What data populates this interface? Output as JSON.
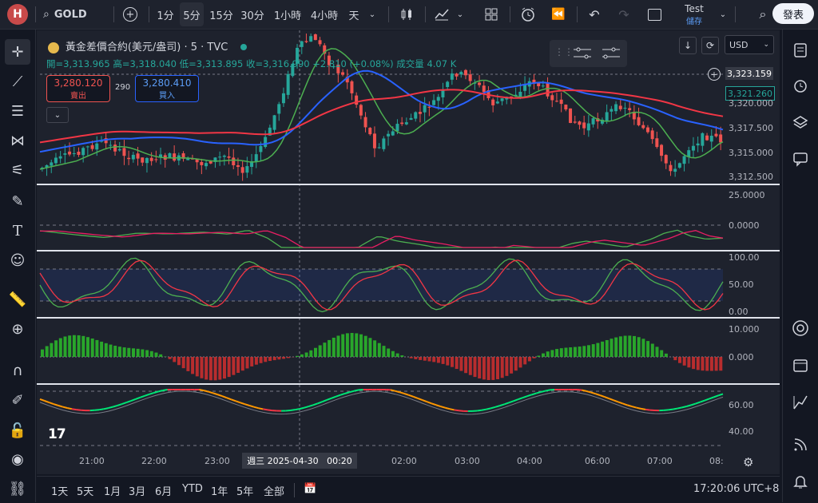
{
  "topbar": {
    "avatar_letter": "H",
    "symbol": "GOLD",
    "intervals": [
      "1分",
      "5分",
      "15分",
      "30分",
      "1小時",
      "4小時",
      "天"
    ],
    "active_interval": "5分",
    "user_name": "Test",
    "save_label": "儲存",
    "publish_label": "發表"
  },
  "legend": {
    "title": "黃金差價合約(美元/盎司) · 5 · TVC",
    "ohlc_line": "開=3,313.965 高=3,318.040 低=3,313.895 收=3,316.990 +2.810 (+0.08%) 成交量 4.07 K",
    "sell_price": "3,280.120",
    "sell_label": "賣出",
    "spread": "290",
    "buy_price": "3,280.410",
    "buy_label": "買入"
  },
  "currency": "USD",
  "price_axis": {
    "crosshair_price": "3,323.159",
    "last_price": "3,321.260",
    "ticks": [
      "3,320.000",
      "3,317.500",
      "3,315.000",
      "3,312.500"
    ]
  },
  "panes": {
    "macd_ticks": [
      "25.0000",
      "0.0000"
    ],
    "stoch_ticks": [
      "100.00",
      "50.00",
      "0.00"
    ],
    "hist_ticks": [
      "10.000",
      "0.000"
    ],
    "rsi_ticks": [
      "60.00",
      "40.00"
    ]
  },
  "time_axis": {
    "labels": [
      "21:00",
      "22:00",
      "23:00",
      "02:00",
      "03:00",
      "04:00",
      "06:00",
      "07:00",
      "08:"
    ],
    "crosshair_time": "週三 2025-04-30   00:20"
  },
  "bottombar": {
    "ranges": [
      "1天",
      "5天",
      "1月",
      "3月",
      "6月",
      "YTD",
      "1年",
      "5年",
      "全部"
    ],
    "clock": "17:20:06 UTC+8"
  },
  "colors": {
    "up": "#26a69a",
    "down": "#ef5350",
    "bg": "#1e222d"
  }
}
